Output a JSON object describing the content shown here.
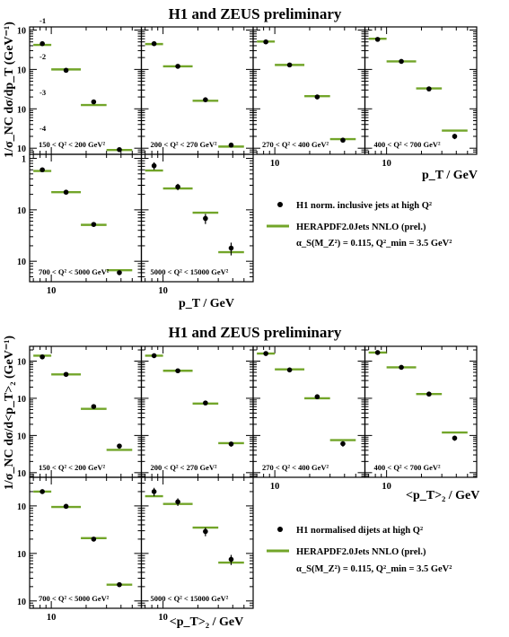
{
  "colors": {
    "theory": "#72a529",
    "data": "#000000",
    "frame": "#000000"
  },
  "chart_data": [
    {
      "type": "scatter",
      "title": "H1 and ZEUS preliminary",
      "ylabel": "1/σ_NC dσ/dp_T (GeV⁻¹)",
      "xlabel": "p_T / GeV",
      "xscale": "log",
      "yscale": "log",
      "xlim": [
        6.5,
        60
      ],
      "ytick_labels": [
        "10⁻¹",
        "10⁻²",
        "10⁻³",
        "10⁻⁴"
      ],
      "xtick_label": "10",
      "legend": {
        "data": "H1 norm. inclusive jets at high Q²",
        "theory": "HERAPDF2.0Jets NNLO (prel.)",
        "params": "α_S(M_Z²) = 0.115, Q²_min = 3.5 GeV²"
      },
      "panels": [
        {
          "label": "150 < Q² < 200 GeV²",
          "ylim": [
            7e-05,
            0.12
          ],
          "bins": [
            [
              7,
              10
            ],
            [
              10,
              18
            ],
            [
              18,
              30
            ],
            [
              30,
              50
            ]
          ],
          "data": [
            0.045,
            0.0095,
            0.0015,
            9.2e-05
          ],
          "err": [
            0.004,
            0.0008,
            0.00014,
            1e-05
          ],
          "theory": [
            0.042,
            0.01,
            0.00125,
            9e-05
          ]
        },
        {
          "label": "200 < Q² < 270 GeV²",
          "ylim": [
            7e-05,
            0.12
          ],
          "bins": [
            [
              7,
              10
            ],
            [
              10,
              18
            ],
            [
              18,
              30
            ],
            [
              30,
              50
            ]
          ],
          "data": [
            0.045,
            0.012,
            0.0017,
            0.00012
          ],
          "err": [
            0.004,
            0.001,
            0.00015,
            1.3e-05
          ],
          "theory": [
            0.044,
            0.012,
            0.0016,
            0.00011
          ]
        },
        {
          "label": "270 < Q² < 400 GeV²",
          "ylim": [
            7e-05,
            0.12
          ],
          "bins": [
            [
              7,
              10
            ],
            [
              10,
              18
            ],
            [
              18,
              30
            ],
            [
              30,
              50
            ]
          ],
          "data": [
            0.05,
            0.013,
            0.002,
            0.00016
          ],
          "err": [
            0.004,
            0.0011,
            0.00018,
            1.7e-05
          ],
          "theory": [
            0.051,
            0.013,
            0.0021,
            0.00017
          ]
        },
        {
          "label": "400 < Q² < 700 GeV²",
          "ylim": [
            7e-05,
            0.12
          ],
          "bins": [
            [
              7,
              10
            ],
            [
              10,
              18
            ],
            [
              18,
              30
            ],
            [
              30,
              50
            ]
          ],
          "data": [
            0.058,
            0.016,
            0.0032,
            0.0002
          ],
          "err": [
            0.005,
            0.0014,
            0.0003,
            3e-05
          ],
          "theory": [
            0.06,
            0.016,
            0.0033,
            0.00028
          ]
        },
        {
          "label": "700 < Q² < 5000 GeV²",
          "ylim": [
            0.0004,
            0.12
          ],
          "bins": [
            [
              7,
              10
            ],
            [
              10,
              18
            ],
            [
              18,
              30
            ],
            [
              30,
              50
            ]
          ],
          "data": [
            0.06,
            0.022,
            0.0052,
            0.0006
          ],
          "err": [
            0.005,
            0.002,
            0.0005,
            6e-05
          ],
          "theory": [
            0.057,
            0.022,
            0.0051,
            0.00067
          ]
        },
        {
          "label": "5000 < Q² < 15000 GeV²",
          "ylim": [
            0.0004,
            0.12
          ],
          "bins": [
            [
              7,
              10
            ],
            [
              10,
              18
            ],
            [
              18,
              30
            ],
            [
              30,
              50
            ]
          ],
          "data": [
            0.072,
            0.028,
            0.0068,
            0.0018
          ],
          "err": [
            0.012,
            0.004,
            0.0015,
            0.0005
          ],
          "theory": [
            0.058,
            0.026,
            0.0088,
            0.0015
          ]
        }
      ]
    },
    {
      "type": "scatter",
      "title": "H1 and ZEUS preliminary",
      "ylabel": "1/σ_NC dσ/d<p_T>₂ (GeV⁻¹)",
      "xlabel": "<p_T>₂ / GeV",
      "xscale": "log",
      "yscale": "log",
      "xlim": [
        6.5,
        60
      ],
      "ytick_labels_top": [
        "10⁻²",
        "10⁻³",
        "10⁻⁴",
        "10⁻⁵"
      ],
      "ytick_labels_bottom": [
        "10⁻²",
        "10⁻³",
        "10⁻⁴"
      ],
      "xtick_label": "10",
      "legend": {
        "data": "H1 normalised dijets at high Q²",
        "theory": "HERAPDF2.0Jets NNLO (prel.)",
        "params": "α_S(M_Z²) = 0.115, Q²_min = 3.5 GeV²"
      },
      "panels": [
        {
          "label": "150 < Q² < 200 GeV²",
          "ylim": [
            7.5e-06,
            0.025
          ],
          "bins": [
            [
              7,
              10
            ],
            [
              10,
              18
            ],
            [
              18,
              30
            ],
            [
              30,
              50
            ]
          ],
          "data": [
            0.013,
            0.0044,
            0.0006,
            5.2e-05
          ],
          "err": [
            0.001,
            0.0004,
            6e-05,
            8e-06
          ],
          "theory": [
            0.014,
            0.0044,
            0.00052,
            4.1e-05
          ]
        },
        {
          "label": "200 < Q² < 270 GeV²",
          "ylim": [
            7.5e-06,
            0.025
          ],
          "bins": [
            [
              7,
              10
            ],
            [
              10,
              18
            ],
            [
              18,
              30
            ],
            [
              30,
              50
            ]
          ],
          "data": [
            0.014,
            0.0055,
            0.00075,
            5.9e-05
          ],
          "err": [
            0.0011,
            0.0005,
            7e-05,
            9e-06
          ],
          "theory": [
            0.014,
            0.0055,
            0.00072,
            6.2e-05
          ]
        },
        {
          "label": "270 < Q² < 400 GeV²",
          "ylim": [
            7.5e-06,
            0.025
          ],
          "bins": [
            [
              7,
              10
            ],
            [
              10,
              18
            ],
            [
              18,
              30
            ],
            [
              30,
              50
            ]
          ],
          "data": [
            0.016,
            0.0058,
            0.0011,
            6e-05
          ],
          "err": [
            0.0012,
            0.0005,
            0.0001,
            1e-05
          ],
          "theory": [
            0.016,
            0.006,
            0.001,
            7.5e-05
          ]
        },
        {
          "label": "400 < Q² < 700 GeV²",
          "ylim": [
            7.5e-06,
            0.025
          ],
          "bins": [
            [
              7,
              10
            ],
            [
              10,
              18
            ],
            [
              18,
              30
            ],
            [
              30,
              50
            ]
          ],
          "data": [
            0.017,
            0.0068,
            0.0013,
            8.5e-05
          ],
          "err": [
            0.0013,
            0.0006,
            0.00012,
            1.3e-05
          ],
          "theory": [
            0.017,
            0.0068,
            0.0013,
            0.00012
          ]
        },
        {
          "label": "700 < Q² < 5000 GeV²",
          "ylim": [
            7e-05,
            0.04
          ],
          "bins": [
            [
              7,
              10
            ],
            [
              10,
              18
            ],
            [
              18,
              30
            ],
            [
              30,
              50
            ]
          ],
          "data": [
            0.02,
            0.0098,
            0.002,
            0.00022
          ],
          "err": [
            0.0017,
            0.0008,
            0.00017,
            2e-05
          ],
          "theory": [
            0.02,
            0.0095,
            0.0021,
            0.00022
          ]
        },
        {
          "label": "5000 < Q² < 15000 GeV²",
          "ylim": [
            7e-05,
            0.04
          ],
          "bins": [
            [
              7,
              10
            ],
            [
              10,
              18
            ],
            [
              18,
              30
            ],
            [
              30,
              50
            ]
          ],
          "data": [
            0.02,
            0.0122,
            0.0029,
            0.00075
          ],
          "err": [
            0.004,
            0.0022,
            0.0006,
            0.00018
          ],
          "theory": [
            0.016,
            0.011,
            0.0035,
            0.00064
          ]
        }
      ]
    }
  ]
}
